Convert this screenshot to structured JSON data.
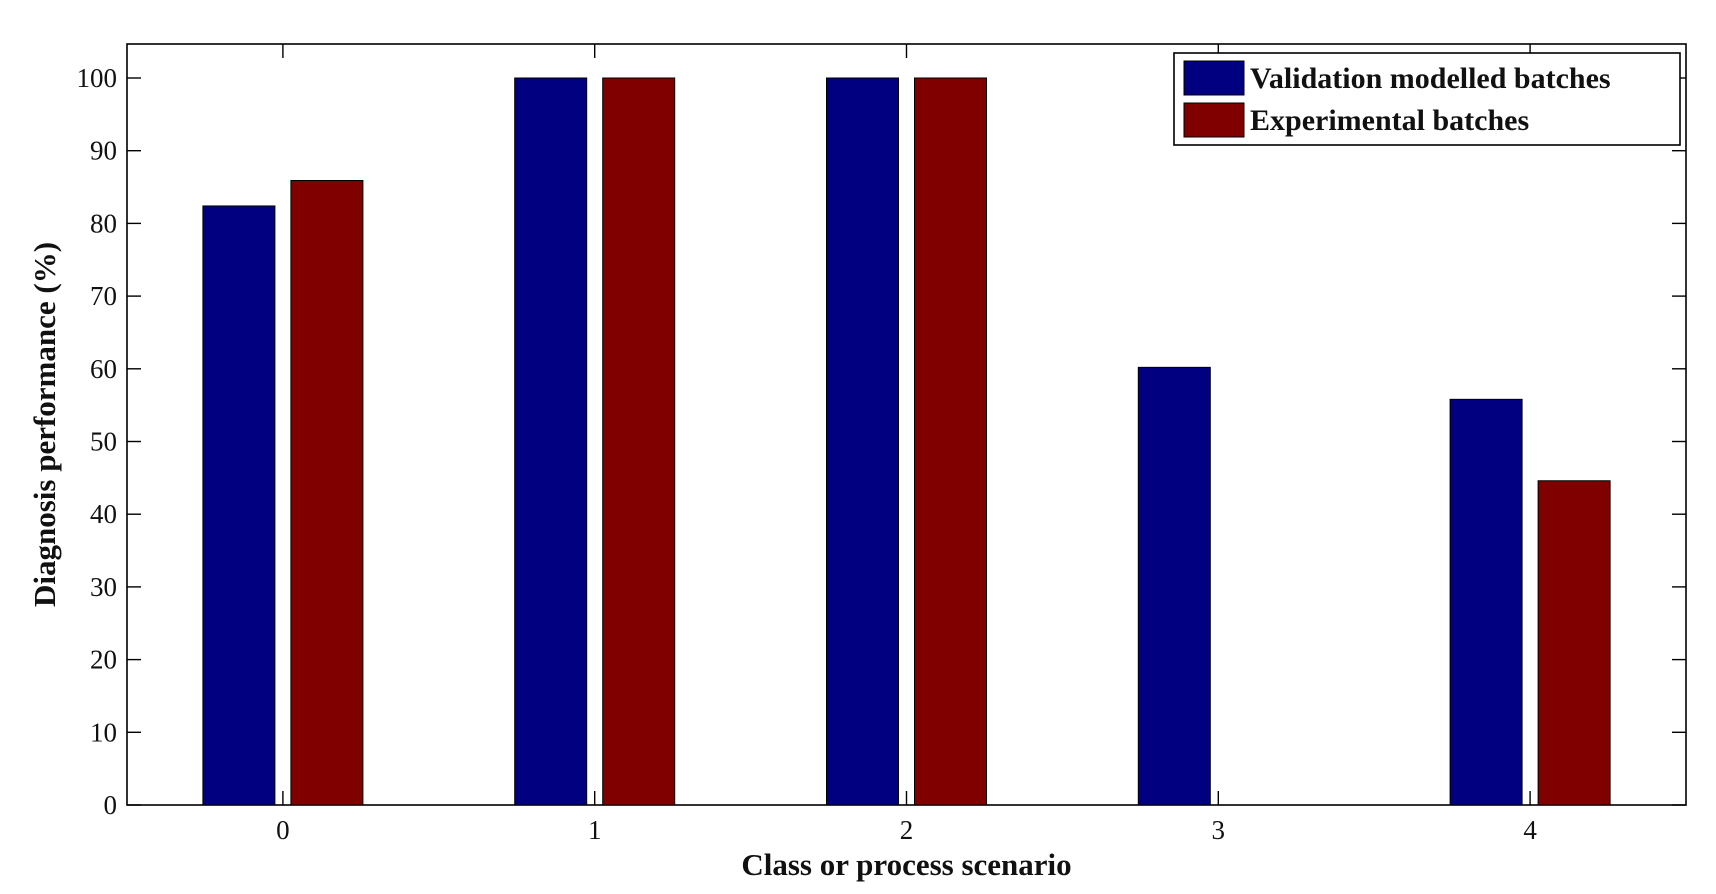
{
  "chart_data": {
    "type": "bar",
    "title": "",
    "xlabel": "Class or process scenario",
    "ylabel": "Diagnosis performance (%)",
    "categories": [
      "0",
      "1",
      "2",
      "3",
      "4"
    ],
    "series": [
      {
        "name": "Validation modelled batches",
        "color": "#000080",
        "values": [
          82.4,
          100,
          100,
          60.2,
          55.8
        ]
      },
      {
        "name": "Experimental batches",
        "color": "#800000",
        "values": [
          85.9,
          100,
          100,
          0,
          44.6
        ]
      }
    ],
    "xlim": [
      -0.5,
      4.5
    ],
    "ylim": [
      0,
      100
    ],
    "yticks": [
      0,
      10,
      20,
      30,
      40,
      50,
      60,
      70,
      80,
      90,
      100
    ],
    "grid": false,
    "legend_position": "top-right"
  }
}
